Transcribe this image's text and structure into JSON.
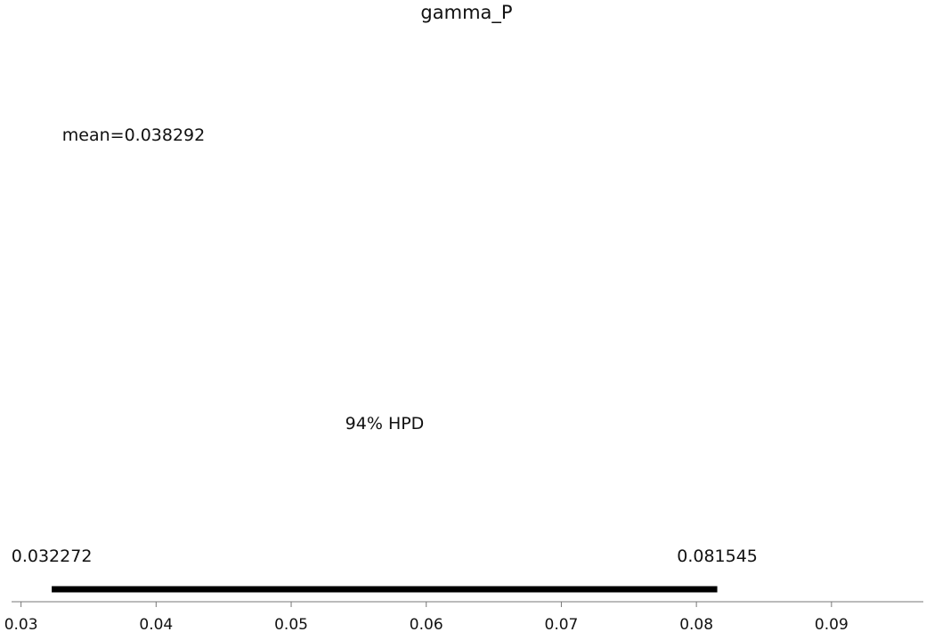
{
  "chart_data": {
    "type": "posterior",
    "title": "gamma_P",
    "xlabel": "",
    "ylabel": "",
    "xlim": [
      0.0293,
      0.0968
    ],
    "x_ticks": [
      0.03,
      0.04,
      0.05,
      0.06,
      0.07,
      0.08,
      0.09
    ],
    "x_tick_labels": [
      "0.03",
      "0.04",
      "0.05",
      "0.06",
      "0.07",
      "0.08",
      "0.09"
    ],
    "mean": 0.038292,
    "mean_label": "mean=0.038292",
    "hpd": {
      "label": "94% HPD",
      "lower": 0.032272,
      "upper": 0.081545,
      "lower_label": "0.032272",
      "upper_label": "0.081545"
    },
    "grid": false,
    "colors": {
      "hpd_bar": "#000000",
      "axis": "#777777",
      "text": "#111111"
    }
  }
}
